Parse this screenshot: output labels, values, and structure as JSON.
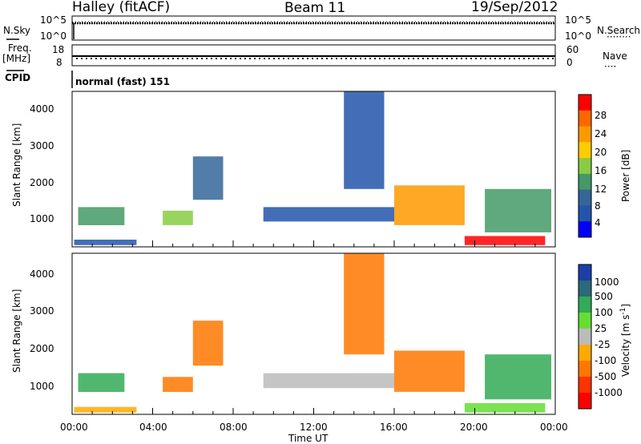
{
  "header": {
    "station": "Halley (fitACF)",
    "beam": "Beam 11",
    "date": "19/Sep/2012"
  },
  "top_panels": {
    "nsky_label": "N.Sky",
    "nsearch_label": "N.Search",
    "nsky_ticks": [
      "10^5",
      "10^0"
    ],
    "nsearch_ticks": [
      "10^5",
      "10^0"
    ],
    "freq_label": "Freq.",
    "freq_unit": "[MHz]",
    "freq_ticks": [
      "18",
      "8"
    ],
    "nave_label": "Nave",
    "nave_ticks": [
      "60",
      "0"
    ],
    "cpid_label": "CPID",
    "cpid_value": "normal (fast) 151"
  },
  "axes": {
    "ylabel": "Slant Range [km]",
    "yticks": [
      "4000",
      "3000",
      "2000",
      "1000"
    ],
    "xticks": [
      "00:00",
      "04:00",
      "08:00",
      "12:00",
      "16:00",
      "20:00",
      "00:00"
    ],
    "xlabel": "Time UT"
  },
  "power_bar": {
    "label": "Power [dB]",
    "ticks": [
      "28",
      "24",
      "20",
      "16",
      "12",
      "8",
      "4"
    ],
    "colors": [
      "#ff0000",
      "#ff6600",
      "#ff9900",
      "#ffcc00",
      "#88cc44",
      "#449966",
      "#336699",
      "#2255aa",
      "#0000ff"
    ]
  },
  "velocity_bar": {
    "label": "Velocity [m s",
    "label_sup": "-1",
    "label_end": "]",
    "ticks": [
      "1000",
      "500",
      "100",
      "25",
      "-25",
      "-100",
      "-500",
      "-1000"
    ],
    "colors": [
      "#1a3fa8",
      "#2a6a7a",
      "#33aa55",
      "#66dd33",
      "#bbbbbb",
      "#ffaa00",
      "#ff7700",
      "#ff3300",
      "#ff0000"
    ]
  },
  "chart_data": [
    {
      "type": "heatmap",
      "title": "Power [dB]",
      "xlabel": "Time UT",
      "ylabel": "Slant Range [km]",
      "xlim": [
        0,
        24
      ],
      "ylim": [
        200,
        4500
      ],
      "clim": [
        0,
        30
      ],
      "patches": [
        {
          "t": [
            0.3,
            2.6
          ],
          "r": [
            800,
            1300
          ],
          "value": 12
        },
        {
          "t": [
            0.1,
            3.2
          ],
          "r": [
            250,
            400
          ],
          "value": 6
        },
        {
          "t": [
            4.5,
            6.0
          ],
          "r": [
            800,
            1200
          ],
          "value": 14
        },
        {
          "t": [
            6.0,
            7.5
          ],
          "r": [
            1500,
            2700
          ],
          "value": 7
        },
        {
          "t": [
            9.5,
            16.0
          ],
          "r": [
            900,
            1300
          ],
          "value": 5
        },
        {
          "t": [
            13.5,
            15.5
          ],
          "r": [
            1800,
            4500
          ],
          "value": 6
        },
        {
          "t": [
            16.0,
            19.5
          ],
          "r": [
            800,
            1900
          ],
          "value": 22
        },
        {
          "t": [
            19.5,
            23.5
          ],
          "r": [
            250,
            500
          ],
          "value": 28
        },
        {
          "t": [
            20.5,
            23.8
          ],
          "r": [
            600,
            1800
          ],
          "value": 12
        }
      ]
    },
    {
      "type": "heatmap",
      "title": "Velocity [m s-1]",
      "xlabel": "Time UT",
      "ylabel": "Slant Range [km]",
      "xlim": [
        0,
        24
      ],
      "ylim": [
        200,
        4500
      ],
      "clim": [
        -1000,
        1000
      ],
      "patches": [
        {
          "t": [
            0.3,
            2.6
          ],
          "r": [
            800,
            1300
          ],
          "value": 100
        },
        {
          "t": [
            0.1,
            3.2
          ],
          "r": [
            250,
            400
          ],
          "value": -100
        },
        {
          "t": [
            4.5,
            6.0
          ],
          "r": [
            800,
            1200
          ],
          "value": -150
        },
        {
          "t": [
            6.0,
            7.5
          ],
          "r": [
            1500,
            2700
          ],
          "value": -300
        },
        {
          "t": [
            9.5,
            16.0
          ],
          "r": [
            900,
            1300
          ],
          "value": 0
        },
        {
          "t": [
            13.5,
            15.5
          ],
          "r": [
            1800,
            4500
          ],
          "value": -400
        },
        {
          "t": [
            16.0,
            19.5
          ],
          "r": [
            800,
            1900
          ],
          "value": -300
        },
        {
          "t": [
            19.5,
            23.5
          ],
          "r": [
            250,
            500
          ],
          "value": 50
        },
        {
          "t": [
            20.5,
            23.8
          ],
          "r": [
            600,
            1800
          ],
          "value": 100
        }
      ]
    }
  ]
}
